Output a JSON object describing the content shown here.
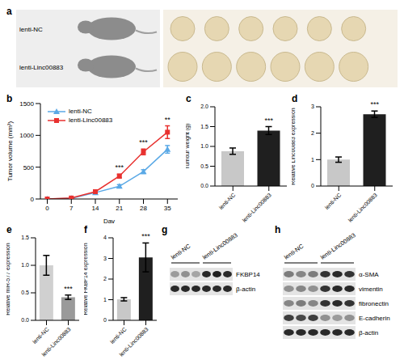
{
  "photos": {
    "panel": "a",
    "groups": [
      "lenti-NC",
      "lenti-Linc00883"
    ]
  },
  "chart_data": [
    {
      "panel": "b",
      "type": "line",
      "x": [
        0,
        7,
        14,
        21,
        28,
        35
      ],
      "xlabel": "Day",
      "ylabel": "Tumor volume (mm³)",
      "xlim": [
        -2,
        38
      ],
      "xticks": [
        0,
        7,
        14,
        21,
        28,
        35
      ],
      "ylim": [
        0,
        1500
      ],
      "yticks": [
        0,
        500,
        1000,
        1500
      ],
      "legend": "upper left",
      "series": [
        {
          "name": "lenti-NC",
          "color": "#5aa9e6",
          "marker": "triangle",
          "values": [
            0,
            10,
            100,
            200,
            430,
            780
          ],
          "errors": [
            0,
            3,
            15,
            25,
            30,
            60
          ]
        },
        {
          "name": "lenti-Linc00883",
          "color": "#e8312f",
          "marker": "square",
          "values": [
            0,
            15,
            115,
            360,
            740,
            1050
          ],
          "errors": [
            0,
            4,
            15,
            30,
            45,
            100
          ]
        }
      ],
      "annotations": [
        {
          "x": 21,
          "text": "***"
        },
        {
          "x": 28,
          "text": "***"
        },
        {
          "x": 35,
          "text": "**"
        }
      ]
    },
    {
      "panel": "c",
      "type": "bar",
      "categories": [
        "lenti-NC",
        "lenti-Linc00883"
      ],
      "values": [
        0.88,
        1.4
      ],
      "errors": [
        0.08,
        0.1
      ],
      "colors": [
        "#c8c8c8",
        "#1f1f1f"
      ],
      "ylabel": "Tumour weight (g)",
      "ylim": [
        0,
        2
      ],
      "yticks": [
        {
          "value": 0,
          "label": "0.0"
        },
        0.5,
        {
          "value": 1,
          "label": "1.0"
        },
        1.5,
        {
          "value": 2,
          "label": "2.0"
        }
      ],
      "annotations": [
        {
          "category": "lenti-Linc00883",
          "text": "***"
        }
      ]
    },
    {
      "panel": "d",
      "type": "bar",
      "categories": [
        "lenti-NC",
        "lenti-Linc00883"
      ],
      "values": [
        1,
        2.72
      ],
      "errors": [
        0.1,
        0.12
      ],
      "colors": [
        "#c8c8c8",
        "#1f1f1f"
      ],
      "ylabel": "Relative Linc00883 expression",
      "ylim": [
        0,
        3
      ],
      "yticks": [
        0,
        1,
        2,
        3
      ],
      "annotations": [
        {
          "category": "lenti-Linc00883",
          "text": "***"
        }
      ]
    },
    {
      "panel": "e",
      "type": "bar",
      "categories": [
        "lenti-NC",
        "lenti-Linc00883"
      ],
      "values": [
        1,
        0.42
      ],
      "errors": [
        0.18,
        0.04
      ],
      "colors": [
        "#d0d0d0",
        "#9a9a9a"
      ],
      "ylabel": "Relative miR-577 expression",
      "ylim": [
        0,
        1.5
      ],
      "yticks": [
        {
          "value": 0,
          "label": "0.0"
        },
        0.5,
        {
          "value": 1,
          "label": "1.0"
        },
        1.5
      ],
      "annotations": [
        {
          "category": "lenti-Linc00883",
          "text": "***"
        }
      ]
    },
    {
      "panel": "f",
      "type": "bar",
      "categories": [
        "lenti-NC",
        "lenti-Linc00883"
      ],
      "values": [
        1.02,
        3.05
      ],
      "errors": [
        0.08,
        0.7
      ],
      "colors": [
        "#c8c8c8",
        "#1f1f1f"
      ],
      "ylabel": "Relative FKBP14 expression",
      "ylim": [
        0,
        4
      ],
      "yticks": [
        0,
        1,
        2,
        3,
        4
      ],
      "annotations": [
        {
          "category": "lenti-Linc00883",
          "text": "***"
        }
      ]
    }
  ],
  "blots": [
    {
      "panel": "g",
      "groups": [
        "lenti-NC",
        "lenti-Linc00883"
      ],
      "rows": [
        "FKBP14",
        "β-actin"
      ]
    },
    {
      "panel": "h",
      "groups": [
        "lenti-NC",
        "lenti-Linc00883"
      ],
      "rows": [
        "α-SMA",
        "vimentin",
        "fibronectin",
        "E-cadherin",
        "β-actin"
      ]
    }
  ]
}
